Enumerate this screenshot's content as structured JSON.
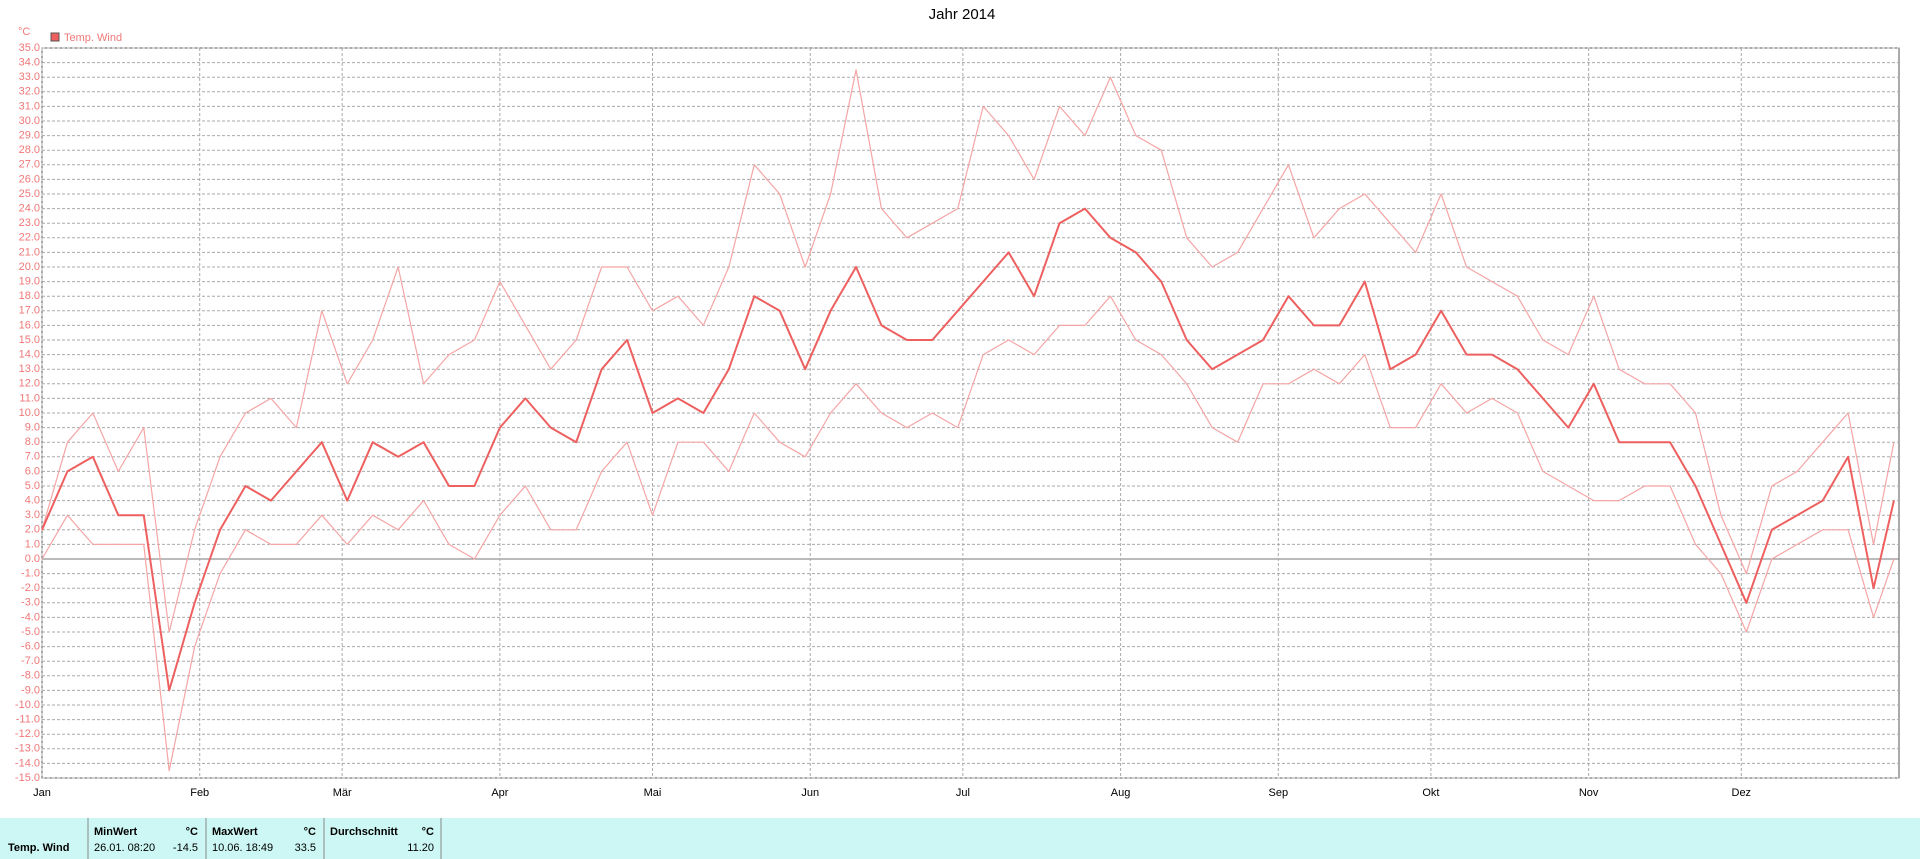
{
  "chart_data": {
    "type": "line",
    "title": "Jahr 2014",
    "ylabel": "°C",
    "x": [
      0,
      5,
      10,
      15,
      20,
      25,
      30,
      35,
      40,
      45,
      50,
      55,
      60,
      65,
      70,
      75,
      80,
      85,
      90,
      95,
      100,
      105,
      110,
      115,
      120,
      125,
      130,
      135,
      140,
      145,
      150,
      155,
      160,
      165,
      170,
      175,
      180,
      185,
      190,
      195,
      200,
      205,
      210,
      215,
      220,
      225,
      230,
      235,
      240,
      245,
      250,
      255,
      260,
      265,
      270,
      275,
      280,
      285,
      290,
      295,
      300,
      305,
      310,
      315,
      320,
      325,
      330,
      335,
      340,
      345,
      350,
      355,
      360,
      364
    ],
    "series": [
      {
        "name": "Temp. Wind",
        "color": "#ee6060",
        "values": [
          2,
          6,
          7,
          3,
          3,
          -9,
          -3,
          2,
          5,
          4,
          6,
          8,
          4,
          8,
          7,
          8,
          5,
          5,
          9,
          11,
          9,
          8,
          13,
          15,
          10,
          11,
          10,
          13,
          18,
          17,
          13,
          17,
          20,
          16,
          15,
          15,
          17,
          19,
          21,
          18,
          23,
          24,
          22,
          21,
          19,
          15,
          13,
          14,
          15,
          18,
          16,
          16,
          19,
          13,
          14,
          17,
          14,
          14,
          13,
          11,
          9,
          12,
          8,
          8,
          8,
          5,
          1,
          -3,
          2,
          3,
          4,
          7,
          -2,
          4
        ]
      },
      {
        "color": "#f5a5a5",
        "values": [
          2,
          8,
          10,
          6,
          9,
          -5,
          2,
          7,
          10,
          11,
          9,
          17,
          12,
          15,
          20,
          12,
          14,
          15,
          19,
          16,
          13,
          15,
          20,
          20,
          17,
          18,
          16,
          20,
          27,
          25,
          20,
          25,
          33.5,
          24,
          22,
          23,
          24,
          31,
          29,
          26,
          31,
          29,
          33,
          29,
          28,
          22,
          20,
          21,
          24,
          27,
          22,
          24,
          25,
          23,
          21,
          25,
          20,
          19,
          18,
          15,
          14,
          18,
          13,
          12,
          12,
          10,
          3,
          -1,
          5,
          6,
          8,
          10,
          1,
          8
        ]
      },
      {
        "color": "#f5a5a5",
        "values": [
          0,
          3,
          1,
          1,
          1,
          -14.5,
          -6,
          -1,
          2,
          1,
          1,
          3,
          1,
          3,
          2,
          4,
          1,
          0,
          3,
          5,
          2,
          2,
          6,
          8,
          3,
          8,
          8,
          6,
          10,
          8,
          7,
          10,
          12,
          10,
          9,
          10,
          9,
          14,
          15,
          14,
          16,
          16,
          18,
          15,
          14,
          12,
          9,
          8,
          12,
          12,
          13,
          12,
          14,
          9,
          9,
          12,
          10,
          11,
          10,
          6,
          5,
          4,
          4,
          5,
          5,
          1,
          -1,
          -5,
          0,
          1,
          2,
          2,
          -4,
          0
        ]
      }
    ],
    "xlim": [
      0,
      365
    ],
    "xticks": [
      {
        "value": 0,
        "label": "Jan"
      },
      {
        "value": 31,
        "label": "Feb"
      },
      {
        "value": 59,
        "label": "Mär"
      },
      {
        "value": 90,
        "label": "Apr"
      },
      {
        "value": 120,
        "label": "Mai"
      },
      {
        "value": 151,
        "label": "Jun"
      },
      {
        "value": 181,
        "label": "Jul"
      },
      {
        "value": 212,
        "label": "Aug"
      },
      {
        "value": 243,
        "label": "Sep"
      },
      {
        "value": 273,
        "label": "Okt"
      },
      {
        "value": 304,
        "label": "Nov"
      },
      {
        "value": 334,
        "label": "Dez"
      }
    ],
    "ylim": [
      -15,
      35
    ],
    "yticks": [
      {
        "value": 35,
        "label": "35.0"
      },
      {
        "value": 34,
        "label": "34.0"
      },
      {
        "value": 33,
        "label": "33.0"
      },
      {
        "value": 32,
        "label": "32.0"
      },
      {
        "value": 31,
        "label": "31.0"
      },
      {
        "value": 30,
        "label": "30.0"
      },
      {
        "value": 29,
        "label": "29.0"
      },
      {
        "value": 28,
        "label": "28.0"
      },
      {
        "value": 27,
        "label": "27.0"
      },
      {
        "value": 26,
        "label": "26.0"
      },
      {
        "value": 25,
        "label": "25.0"
      },
      {
        "value": 24,
        "label": "24.0"
      },
      {
        "value": 23,
        "label": "23.0"
      },
      {
        "value": 22,
        "label": "22.0"
      },
      {
        "value": 21,
        "label": "21.0"
      },
      {
        "value": 20,
        "label": "20.0"
      },
      {
        "value": 19,
        "label": "19.0"
      },
      {
        "value": 18,
        "label": "18.0"
      },
      {
        "value": 17,
        "label": "17.0"
      },
      {
        "value": 16,
        "label": "16.0"
      },
      {
        "value": 15,
        "label": "15.0"
      },
      {
        "value": 14,
        "label": "14.0"
      },
      {
        "value": 13,
        "label": "13.0"
      },
      {
        "value": 12,
        "label": "12.0"
      },
      {
        "value": 11,
        "label": "11.0"
      },
      {
        "value": 10,
        "label": "10.0"
      },
      {
        "value": 9,
        "label": "9.0"
      },
      {
        "value": 8,
        "label": "8.0"
      },
      {
        "value": 7,
        "label": "7.0"
      },
      {
        "value": 6,
        "label": "6.0"
      },
      {
        "value": 5,
        "label": "5.0"
      },
      {
        "value": 4,
        "label": "4.0"
      },
      {
        "value": 3,
        "label": "3.0"
      },
      {
        "value": 2,
        "label": "2.0"
      },
      {
        "value": 1,
        "label": "1.0"
      },
      {
        "value": 0,
        "label": "0.0"
      },
      {
        "value": -1,
        "label": "-1.0"
      },
      {
        "value": -2,
        "label": "-2.0"
      },
      {
        "value": -3,
        "label": "-3.0"
      },
      {
        "value": -4,
        "label": "-4.0"
      },
      {
        "value": -5,
        "label": "-5.0"
      },
      {
        "value": -6,
        "label": "-6.0"
      },
      {
        "value": -7,
        "label": "-7.0"
      },
      {
        "value": -8,
        "label": "-8.0"
      },
      {
        "value": -9,
        "label": "-9.0"
      },
      {
        "value": -10,
        "label": "-10.0"
      },
      {
        "value": -11,
        "label": "-11.0"
      },
      {
        "value": -12,
        "label": "-12.0"
      },
      {
        "value": -13,
        "label": "-13.0"
      },
      {
        "value": -14,
        "label": "-14.0"
      },
      {
        "value": -15,
        "label": "-15.0"
      }
    ],
    "grid": true,
    "tick_color": "#f07878"
  },
  "stats": {
    "row_label": "Temp. Wind",
    "min": {
      "header": "MinWert",
      "unit": "°C",
      "time": "26.01.  08:20",
      "value": "-14.5"
    },
    "max": {
      "header": "MaxWert",
      "unit": "°C",
      "time": "10.06.  18:49",
      "value": "33.5"
    },
    "avg": {
      "header": "Durchschnitt",
      "unit": "°C",
      "value": "11.20"
    }
  }
}
